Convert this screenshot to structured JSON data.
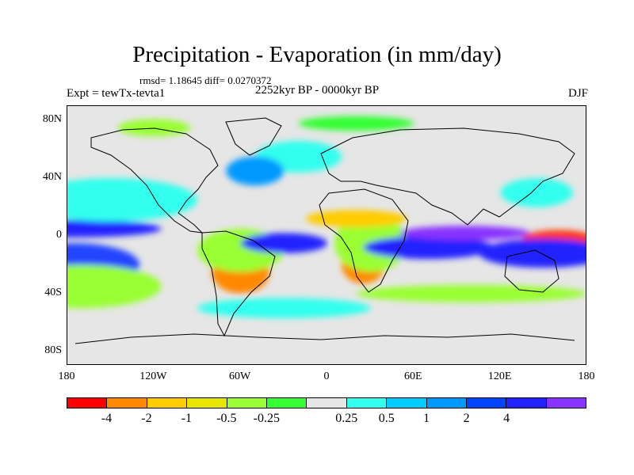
{
  "title": "Precipitation - Evaporation (in mm/day)",
  "stats": "rmsd= 1.18645 diff= 0.0270372",
  "experiment": "Expt = tewTx-tevta1",
  "period": "2252kyr BP - 0000kyr BP",
  "season": "DJF",
  "map": {
    "lat_labels": [
      "80N",
      "40N",
      "0",
      "40S",
      "80S"
    ],
    "lat_values": [
      80,
      40,
      0,
      -40,
      -80
    ],
    "lon_labels": [
      "180",
      "120W",
      "60W",
      "0",
      "60E",
      "120E",
      "180"
    ],
    "lon_values": [
      -180,
      -120,
      -60,
      0,
      60,
      120,
      180
    ],
    "lat_range": [
      -90,
      90
    ],
    "lon_range": [
      -180,
      180
    ],
    "background_color": "#e6e6e6"
  },
  "colorbar": {
    "colors": [
      "#ff0000",
      "#ff8800",
      "#ffcc00",
      "#e6e600",
      "#99ff33",
      "#33ff33",
      "#e6e6e6",
      "#33ffee",
      "#00ccff",
      "#0099ff",
      "#0044ff",
      "#2222ff",
      "#8833ff"
    ],
    "labels": [
      "-4",
      "-2",
      "-1",
      "-0.5",
      "-0.25",
      "0.25",
      "0.5",
      "1",
      "2",
      "4"
    ]
  },
  "fields": [
    {
      "lon": -180,
      "lat": -15,
      "w": 40,
      "h": 16,
      "color": "#ff3300"
    },
    {
      "lon": -175,
      "lat": -20,
      "w": 90,
      "h": 30,
      "color": "#2244ff"
    },
    {
      "lon": -170,
      "lat": -35,
      "w": 110,
      "h": 30,
      "color": "#99ff33"
    },
    {
      "lon": -175,
      "lat": 5,
      "w": 120,
      "h": 12,
      "color": "#2222ff"
    },
    {
      "lon": -150,
      "lat": 25,
      "w": 120,
      "h": 30,
      "color": "#33ffee"
    },
    {
      "lon": -60,
      "lat": -25,
      "w": 40,
      "h": 30,
      "color": "#ff8800"
    },
    {
      "lon": -60,
      "lat": -10,
      "w": 60,
      "h": 30,
      "color": "#99ff33"
    },
    {
      "lon": -30,
      "lat": -5,
      "w": 60,
      "h": 14,
      "color": "#2222ff"
    },
    {
      "lon": 25,
      "lat": -20,
      "w": 30,
      "h": 26,
      "color": "#ff8800"
    },
    {
      "lon": 30,
      "lat": -5,
      "w": 50,
      "h": 40,
      "color": "#99ff33"
    },
    {
      "lon": 70,
      "lat": -8,
      "w": 90,
      "h": 16,
      "color": "#2222ff"
    },
    {
      "lon": 95,
      "lat": 2,
      "w": 90,
      "h": 10,
      "color": "#8833ff"
    },
    {
      "lon": 160,
      "lat": -2,
      "w": 50,
      "h": 12,
      "color": "#ff3300"
    },
    {
      "lon": 150,
      "lat": -12,
      "w": 90,
      "h": 20,
      "color": "#2222ff"
    },
    {
      "lon": 145,
      "lat": 30,
      "w": 50,
      "h": 20,
      "color": "#33ffee"
    },
    {
      "lon": -20,
      "lat": 55,
      "w": 60,
      "h": 22,
      "color": "#33ffee"
    },
    {
      "lon": -50,
      "lat": 45,
      "w": 40,
      "h": 20,
      "color": "#0099ff"
    },
    {
      "lon": 20,
      "lat": 12,
      "w": 70,
      "h": 12,
      "color": "#ffcc00"
    },
    {
      "lon": 20,
      "lat": 78,
      "w": 80,
      "h": 10,
      "color": "#33ff33"
    },
    {
      "lon": -120,
      "lat": 75,
      "w": 50,
      "h": 12,
      "color": "#99ff33"
    },
    {
      "lon": 100,
      "lat": -40,
      "w": 160,
      "h": 12,
      "color": "#99ff33"
    },
    {
      "lon": -30,
      "lat": -50,
      "w": 120,
      "h": 14,
      "color": "#33ffee"
    }
  ]
}
